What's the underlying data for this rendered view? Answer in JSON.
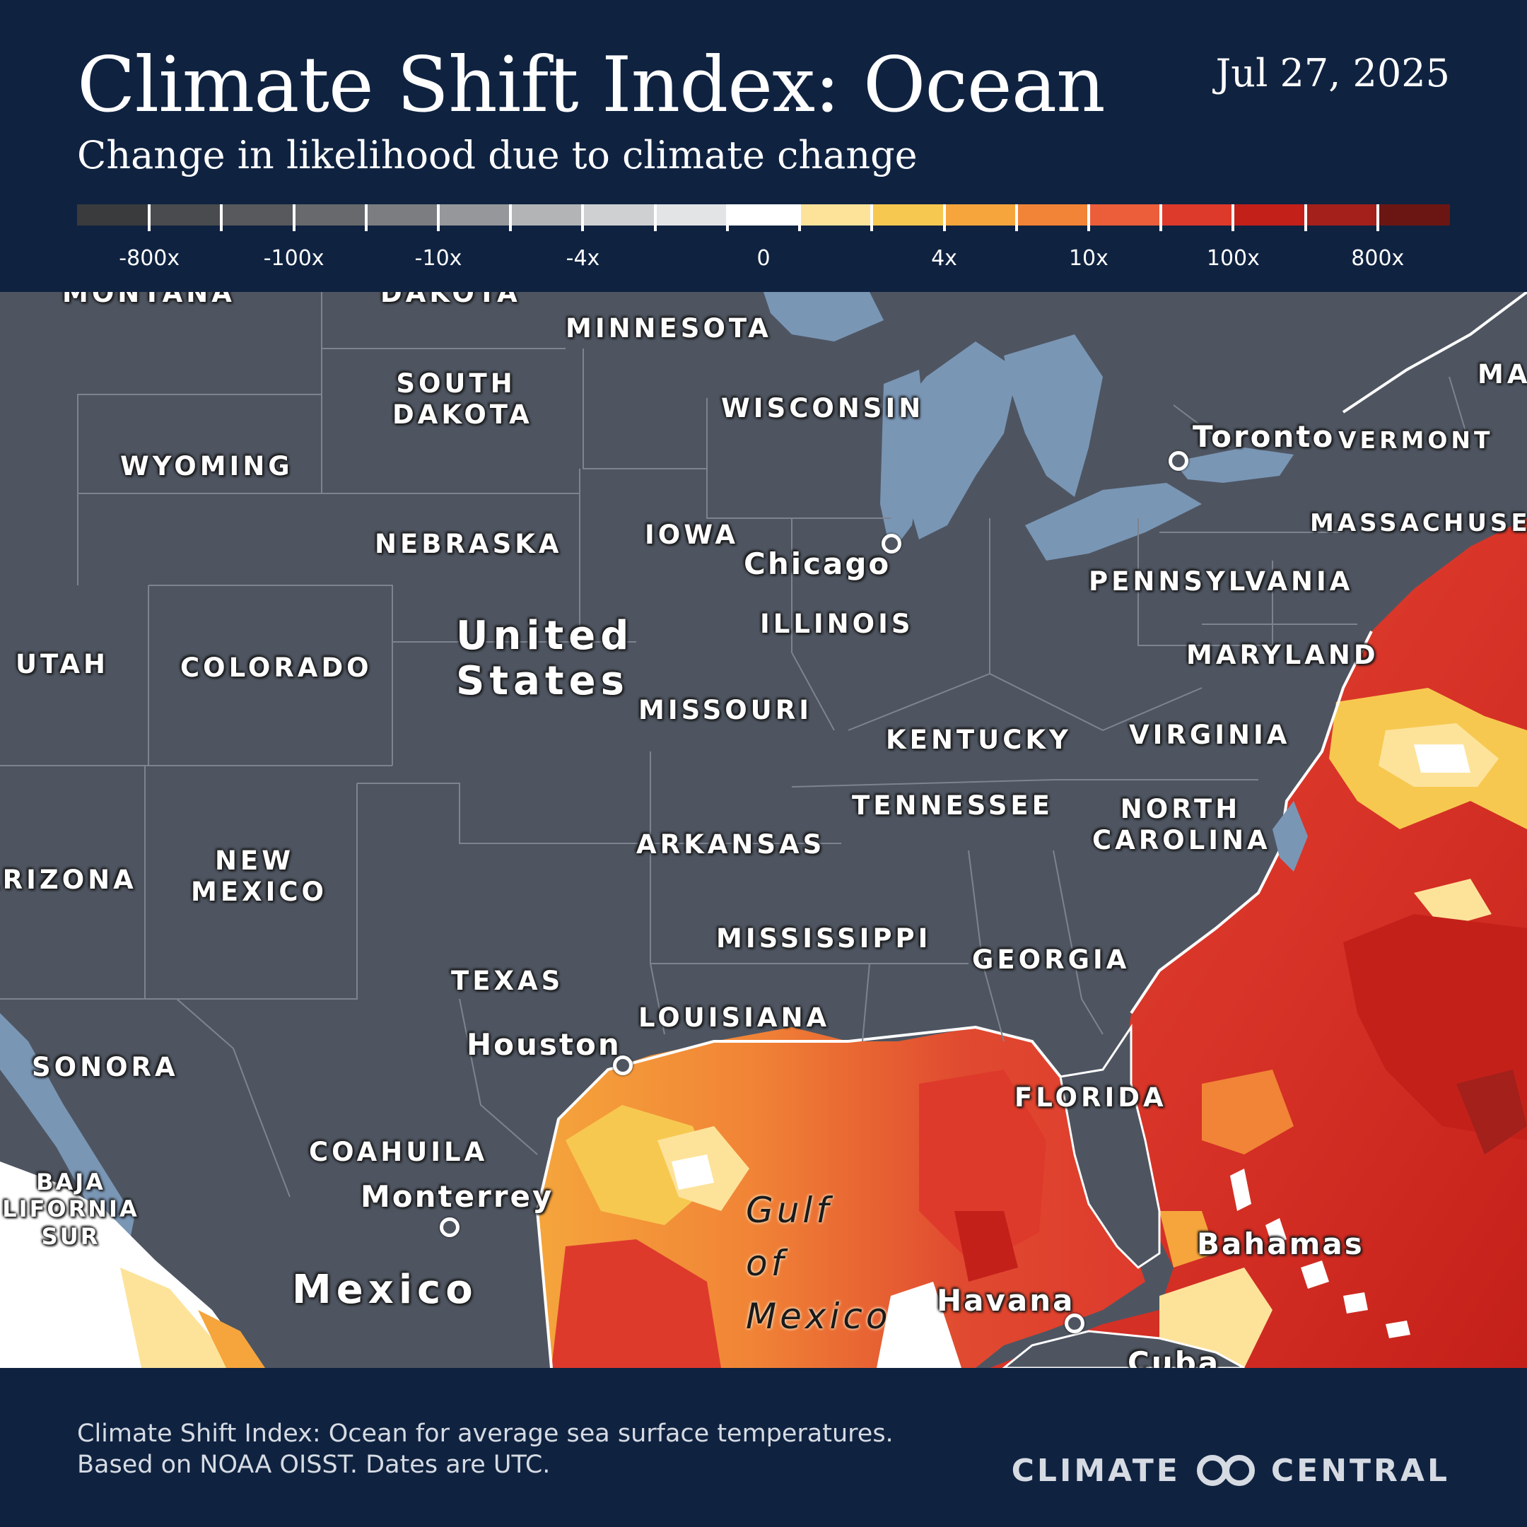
{
  "header": {
    "title": "Climate Shift Index: Ocean",
    "subtitle": "Change in likelihood due to climate change",
    "date": "Jul 27, 2025"
  },
  "legend": {
    "colors": [
      "#3a3b3d",
      "#4a4b4e",
      "#58595c",
      "#68696c",
      "#7c7d80",
      "#96979a",
      "#b3b4b6",
      "#cfd0d2",
      "#e3e4e6",
      "#ffffff",
      "#fde39a",
      "#f7c850",
      "#f5a53c",
      "#f18436",
      "#ec5e3a",
      "#de3a2c",
      "#c4201a",
      "#a3201b",
      "#6c1613"
    ],
    "labels": [
      {
        "text": "-800x",
        "index": 1
      },
      {
        "text": "-100x",
        "index": 3
      },
      {
        "text": "-10x",
        "index": 5
      },
      {
        "text": "-4x",
        "index": 7
      },
      {
        "text": "0",
        "index": 9.5
      },
      {
        "text": "4x",
        "index": 12
      },
      {
        "text": "10x",
        "index": 14
      },
      {
        "text": "100x",
        "index": 16
      },
      {
        "text": "800x",
        "index": 18
      }
    ]
  },
  "map": {
    "labels": {
      "montana": "MONTANA",
      "dakota_top": "DAKOTA",
      "minnesota": "MINNESOTA",
      "south_dakota": "SOUTH DAKOTA",
      "wisconsin": "WISCONSIN",
      "wyoming": "WYOMING",
      "nebraska": "NEBRASKA",
      "iowa": "IOWA",
      "illinois": "ILLINOIS",
      "utah": "UTAH",
      "colorado": "COLORADO",
      "missouri": "MISSOURI",
      "kentucky": "KENTUCKY",
      "virginia": "VIRGINIA",
      "tennessee": "TENNESSEE",
      "north_carolina": "NORTH CAROLINA",
      "arkansas": "ARKANSAS",
      "arizona": "ARIZONA",
      "new_mexico": "NEW MEXICO",
      "mississippi": "MISSISSIPPI",
      "georgia": "GEORGIA",
      "texas": "TEXAS",
      "louisiana": "LOUISIANA",
      "florida": "FLORIDA",
      "sonora": "SONORA",
      "coahuila": "COAHUILA",
      "baja": "BAJA LIFORNIA SUR",
      "pennsylvania": "PENNSYLVANIA",
      "maryland": "MARYLAND",
      "vermont": "VERMONT",
      "massachusetts": "MASSACHUSET",
      "maine": "MA",
      "cuba": "Cuba"
    },
    "cities": {
      "toronto": "Toronto",
      "chicago": "Chicago",
      "houston": "Houston",
      "monterrey": "Monterrey",
      "havana": "Havana",
      "bahamas": "Bahamas"
    },
    "countries": {
      "us": "United States",
      "mexico": "Mexico"
    },
    "water": {
      "gulf": "Gulf of Mexico"
    }
  },
  "footer": {
    "note_line1": "Climate Shift Index: Ocean for average sea surface temperatures.",
    "note_line2": "Based on NOAA OISST. Dates are UTC.",
    "brand_left": "CLIMATE",
    "brand_right": "CENTRAL"
  }
}
